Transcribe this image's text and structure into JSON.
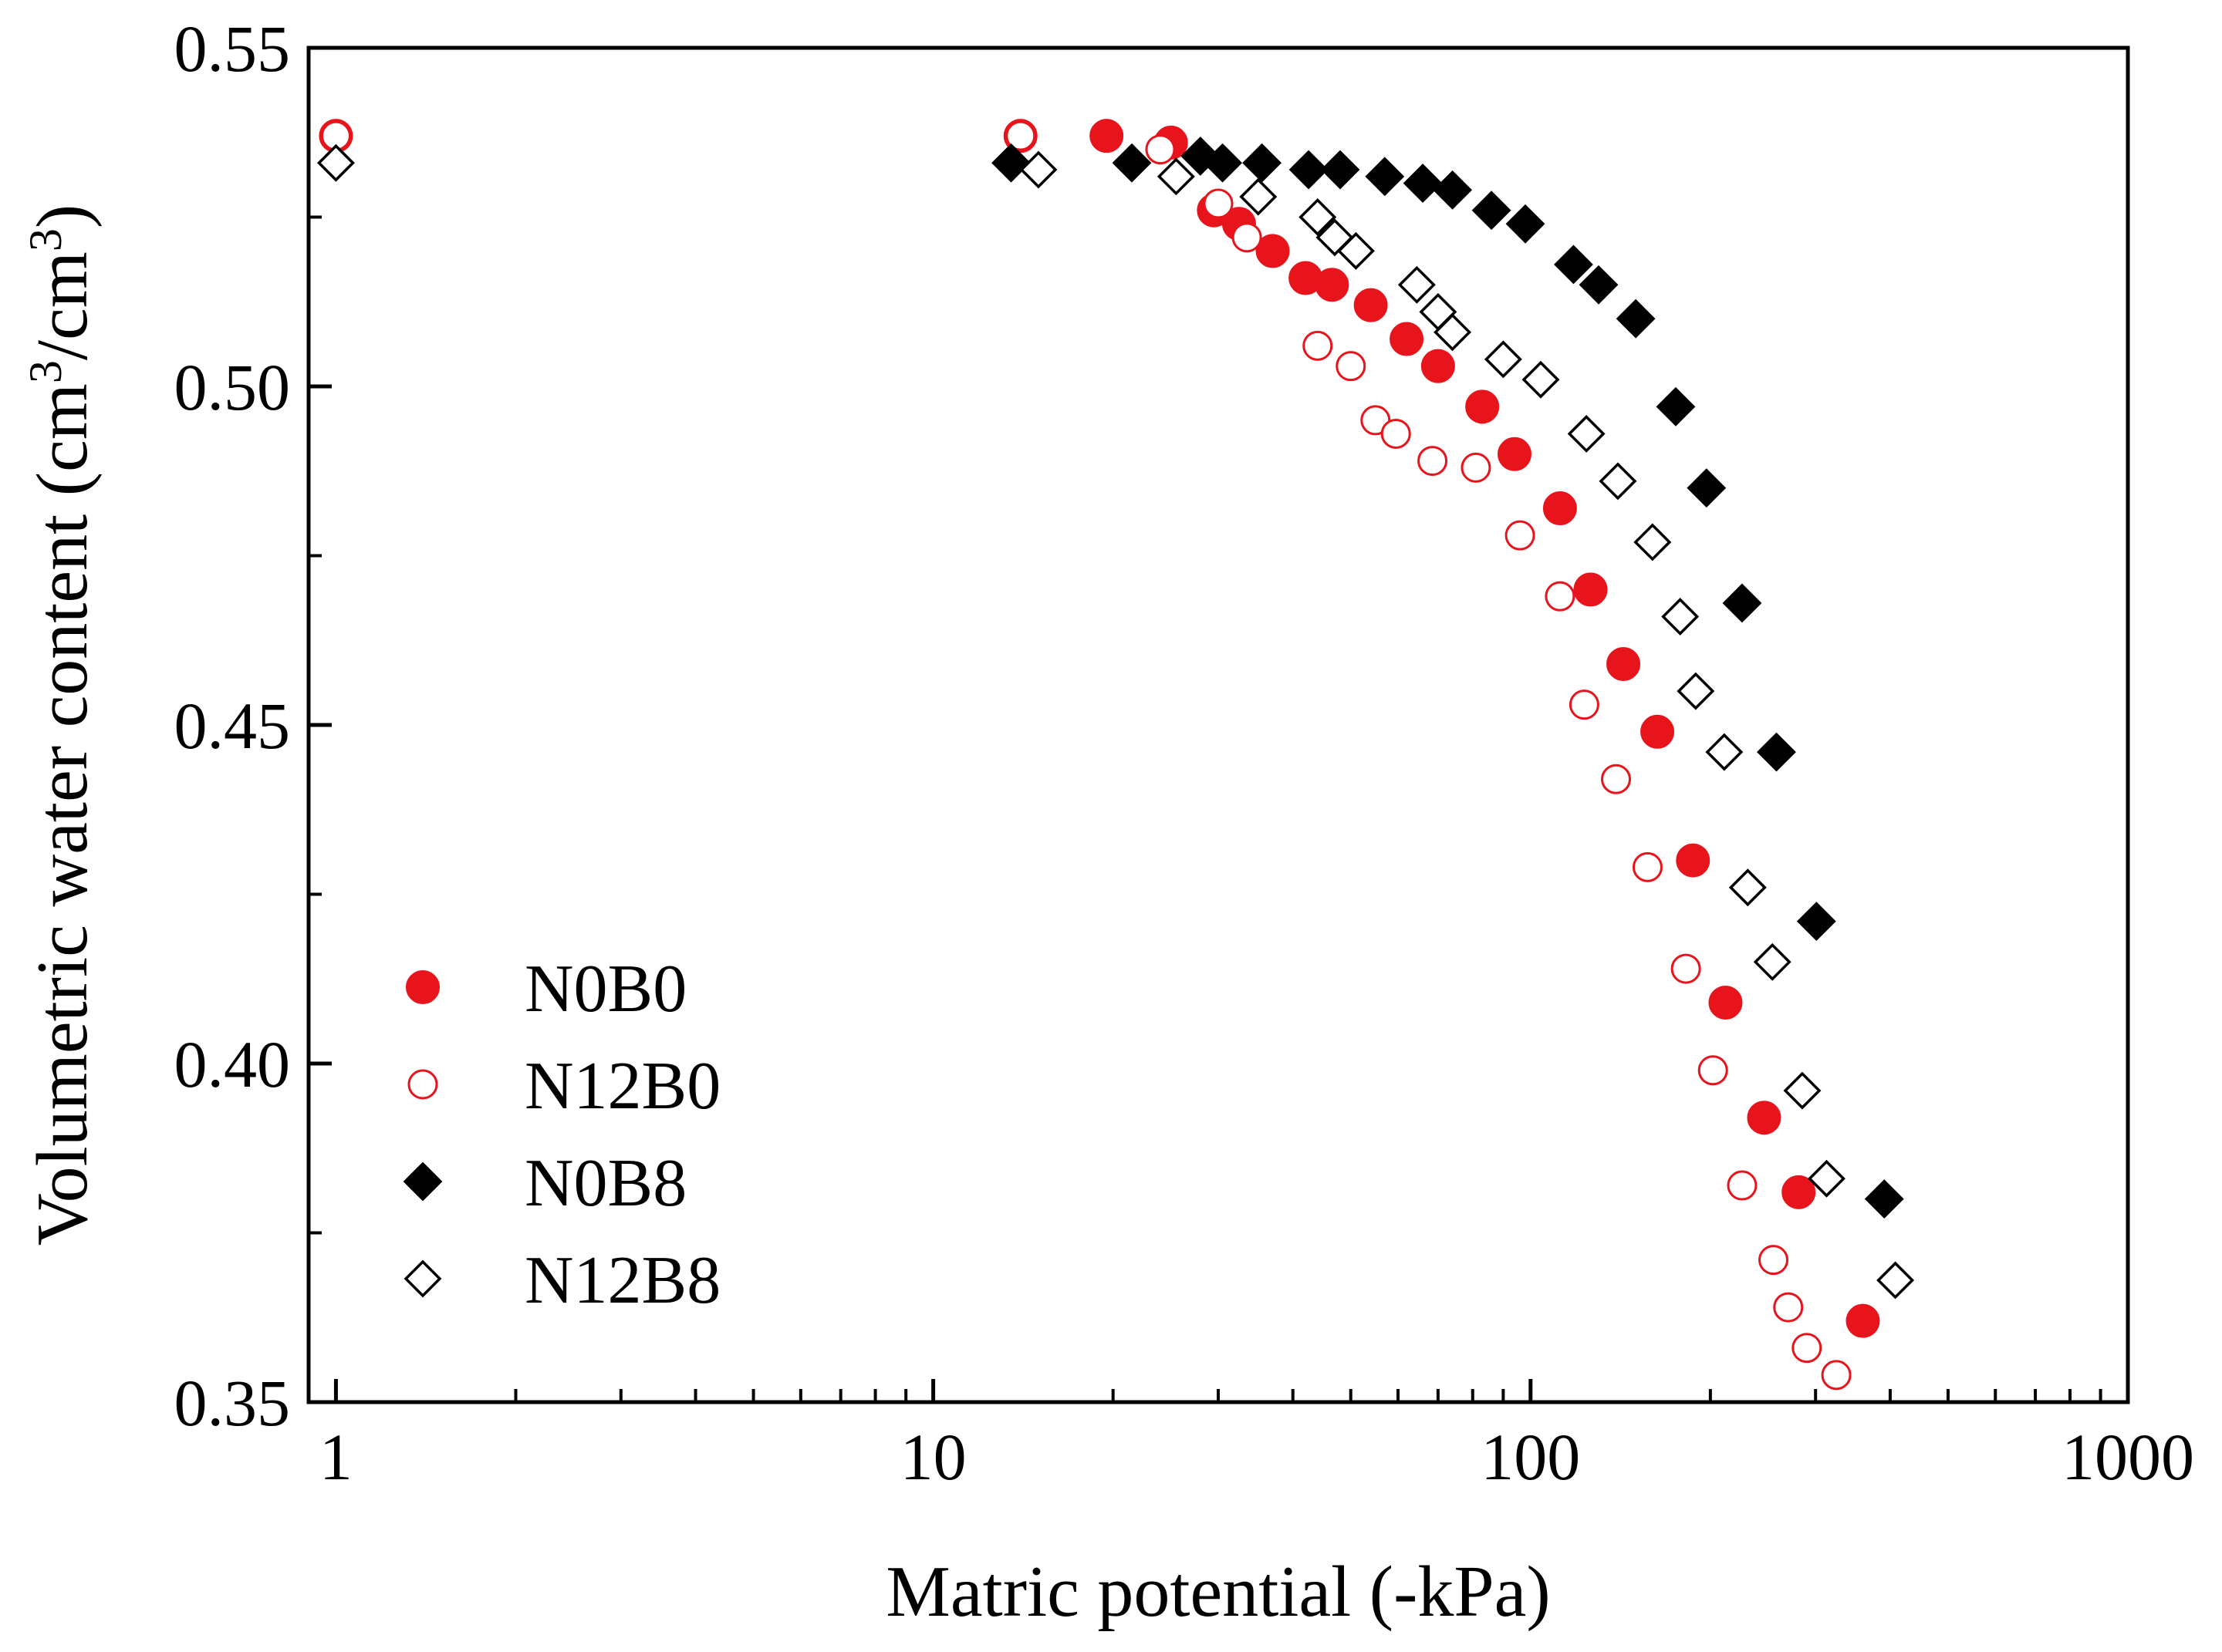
{
  "chart_data": {
    "type": "scatter",
    "title": "",
    "xlabel": "Matric potential (-kPa)",
    "ylabel_parts": [
      "Volumetric water content (cm",
      "3",
      "/cm",
      "3",
      ")"
    ],
    "xscale": "log",
    "xlim": [
      0.9,
      1000
    ],
    "ylim": [
      0.35,
      0.55
    ],
    "xticks": [
      1,
      10,
      100,
      1000
    ],
    "xtick_labels": [
      "1",
      "10",
      "100",
      "1000"
    ],
    "yticks": [
      0.35,
      0.4,
      0.45,
      0.5,
      0.55
    ],
    "ytick_labels": [
      "0.35",
      "0.40",
      "0.45",
      "0.50",
      "0.55"
    ],
    "grid": false,
    "legend_position": "lower-left",
    "series": [
      {
        "name": "N0B0",
        "marker": "circle",
        "filled": true,
        "color": "#e8141c",
        "x": [
          1,
          14,
          19.5,
          25,
          29.5,
          32.5,
          37,
          42,
          46.5,
          54,
          62,
          70,
          83,
          94,
          112,
          126,
          143,
          163,
          187,
          212,
          246,
          281,
          360
        ],
        "y": [
          0.537,
          0.537,
          0.537,
          0.536,
          0.526,
          0.524,
          0.52,
          0.516,
          0.515,
          0.512,
          0.507,
          0.503,
          0.497,
          0.49,
          0.482,
          0.47,
          0.459,
          0.449,
          0.43,
          0.409,
          0.392,
          0.381,
          0.362
        ]
      },
      {
        "name": "N12B0",
        "marker": "circle",
        "filled": false,
        "color": "#e8141c",
        "x": [
          1,
          14,
          24,
          30,
          33.5,
          44,
          50,
          55,
          59.5,
          68.5,
          81,
          96,
          112,
          123,
          139,
          157,
          182,
          202,
          226,
          255,
          270,
          290,
          325
        ],
        "y": [
          0.537,
          0.537,
          0.535,
          0.527,
          0.522,
          0.506,
          0.503,
          0.495,
          0.493,
          0.489,
          0.488,
          0.478,
          0.469,
          0.453,
          0.442,
          0.429,
          0.414,
          0.399,
          0.382,
          0.371,
          0.364,
          0.358,
          0.354
        ]
      },
      {
        "name": "N0B8",
        "marker": "diamond",
        "filled": true,
        "color": "#000000",
        "x": [
          13.5,
          21.5,
          28,
          30.5,
          35.5,
          42.5,
          48,
          57,
          66,
          74,
          86,
          98,
          118,
          130,
          150,
          175,
          197,
          226,
          258,
          301,
          391
        ],
        "y": [
          0.533,
          0.533,
          0.534,
          0.533,
          0.533,
          0.532,
          0.532,
          0.531,
          0.53,
          0.529,
          0.526,
          0.524,
          0.518,
          0.515,
          0.51,
          0.497,
          0.485,
          0.468,
          0.446,
          0.421,
          0.38
        ]
      },
      {
        "name": "N12B8",
        "marker": "diamond",
        "filled": false,
        "color": "#000000",
        "x": [
          1,
          15,
          25.5,
          35,
          44,
          47,
          51,
          64.5,
          70,
          74,
          90,
          104,
          124,
          140,
          160,
          178,
          189,
          211,
          231,
          254,
          285,
          313,
          408
        ],
        "y": [
          0.533,
          0.532,
          0.531,
          0.528,
          0.525,
          0.522,
          0.52,
          0.515,
          0.511,
          0.508,
          0.504,
          0.501,
          0.493,
          0.486,
          0.477,
          0.466,
          0.455,
          0.446,
          0.426,
          0.415,
          0.396,
          0.383,
          0.368
        ]
      }
    ]
  }
}
